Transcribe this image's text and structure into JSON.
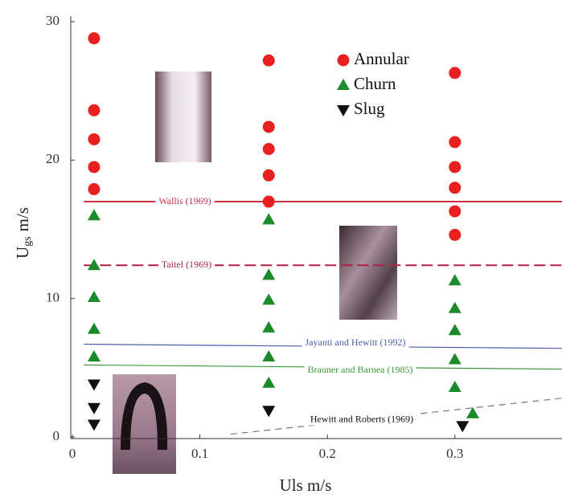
{
  "chart_data": {
    "type": "scatter",
    "x_label": "Uls m/s",
    "y_label": {
      "base": "U",
      "sub": "gs",
      "unit": "m/s"
    },
    "xlim": [
      0,
      0.384
    ],
    "ylim": [
      0,
      30
    ],
    "xticks": [
      0,
      0.1,
      0.2,
      0.3
    ],
    "yticks": [
      0,
      10,
      20,
      30
    ],
    "grid": false,
    "legend": "top-center",
    "series": [
      {
        "name": "Annular",
        "color": "#e8201f",
        "marker": "circle",
        "x": [
          0.017,
          0.017,
          0.017,
          0.017,
          0.017,
          0.154,
          0.154,
          0.154,
          0.154,
          0.154,
          0.3,
          0.3,
          0.3,
          0.3,
          0.3,
          0.3
        ],
        "values": [
          28.8,
          23.6,
          21.5,
          19.5,
          17.9,
          27.2,
          22.4,
          20.8,
          18.9,
          17.0,
          26.3,
          21.3,
          19.5,
          18.0,
          16.3,
          14.6
        ]
      },
      {
        "name": "Churn",
        "color": "#1a8a2a",
        "marker": "triangle-up",
        "x": [
          0.017,
          0.017,
          0.017,
          0.017,
          0.017,
          0.154,
          0.154,
          0.154,
          0.154,
          0.154,
          0.154,
          0.3,
          0.3,
          0.3,
          0.3,
          0.3,
          0.314
        ],
        "values": [
          16.0,
          12.4,
          10.1,
          7.8,
          5.8,
          15.7,
          11.7,
          9.9,
          7.9,
          5.8,
          3.9,
          11.3,
          9.3,
          7.7,
          5.6,
          3.6,
          1.7
        ]
      },
      {
        "name": "Slug",
        "color": "#111111",
        "marker": "triangle-down",
        "x": [
          0.017,
          0.017,
          0.017,
          0.154,
          0.306
        ],
        "values": [
          3.8,
          2.1,
          0.9,
          1.9,
          0.8
        ]
      }
    ],
    "lines": [
      {
        "name": "Wallis (1969)",
        "color": "#c8304a",
        "dash": false,
        "x": [
          0.009,
          0.384
        ],
        "values": [
          17.0,
          17.0
        ]
      },
      {
        "name": "Taitel (1969)",
        "color": "#b02040",
        "dash": true,
        "x": [
          0.009,
          0.384
        ],
        "values": [
          12.4,
          12.4
        ]
      },
      {
        "name": "Jayanti and Hewitt (1992)",
        "color": "#4a5fb0",
        "dash": false,
        "x": [
          0.009,
          0.384
        ],
        "values": [
          6.7,
          6.4
        ]
      },
      {
        "name": "Brauner and Barnea (1985)",
        "color": "#3a9a3a",
        "dash": false,
        "x": [
          0.009,
          0.384
        ],
        "values": [
          5.2,
          4.9
        ]
      },
      {
        "name": "Hewitt and Roberts (1969)",
        "color": "#777777",
        "dash": true,
        "x": [
          0.124,
          0.384
        ],
        "values": [
          0.2,
          2.8
        ]
      }
    ]
  }
}
